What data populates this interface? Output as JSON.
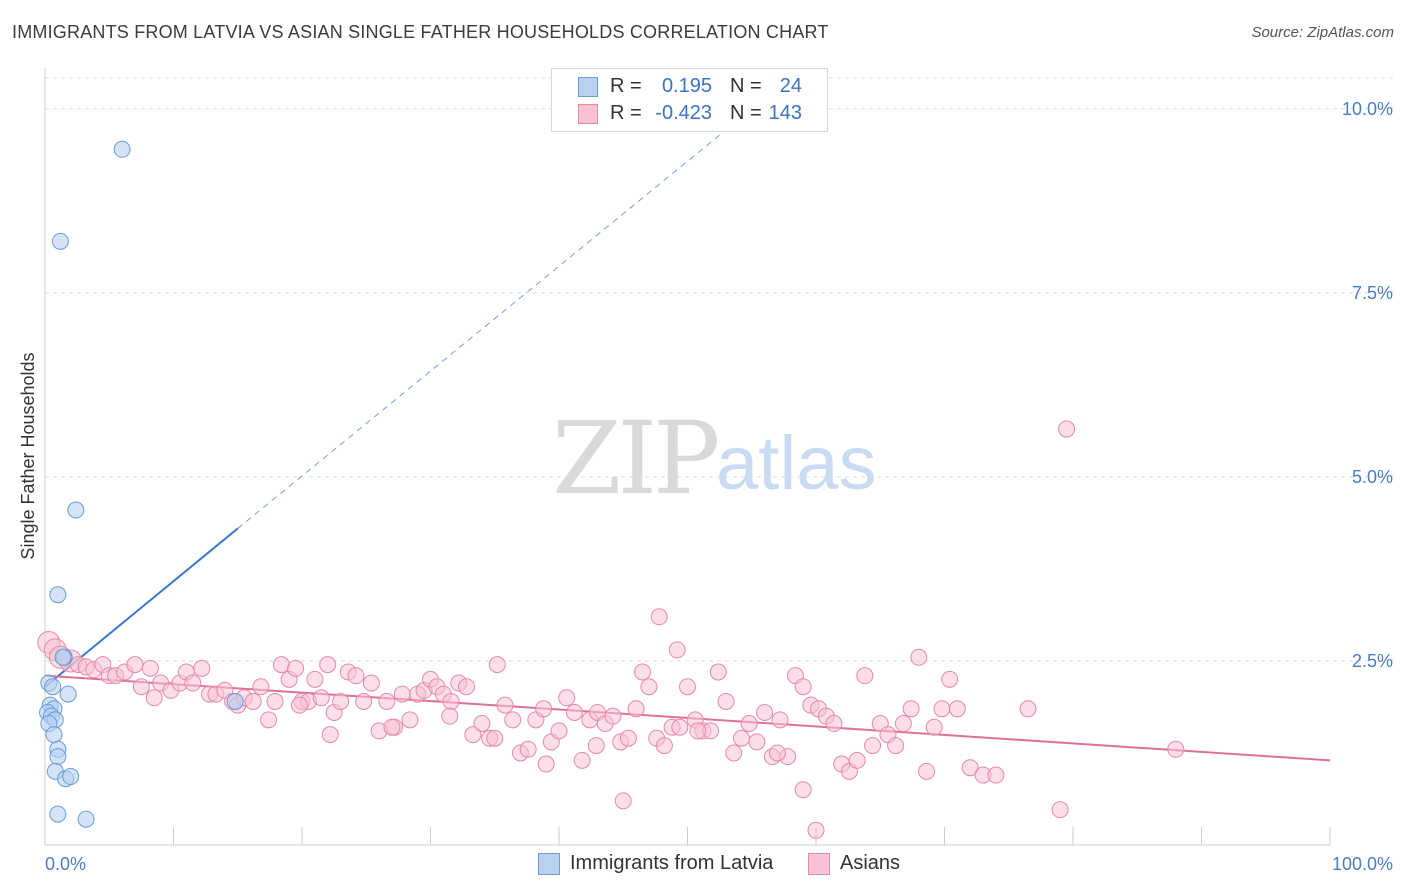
{
  "title": "IMMIGRANTS FROM LATVIA VS ASIAN SINGLE FATHER HOUSEHOLDS CORRELATION CHART",
  "source": "Source: ZipAtlas.com",
  "watermark": {
    "zip": "ZIP",
    "atlas": "atlas"
  },
  "legend": {
    "rows": [
      {
        "r_label": "R =",
        "r_value": "0.195",
        "n_label": "N =",
        "n_value": "24"
      },
      {
        "r_label": "R =",
        "r_value": "-0.423",
        "n_label": "N =",
        "n_value": "143"
      }
    ]
  },
  "colors": {
    "blue_fill": "#b8d1f0",
    "blue_stroke": "#6a9bdb",
    "blue_line": "#3a78cc",
    "pink_fill": "#f7c2d2",
    "pink_stroke": "#e58aa8",
    "pink_line": "#e0709a",
    "tick_text": "#4a7cc9",
    "grid": "#dddddd"
  },
  "chart_data": {
    "type": "scatter",
    "title": "IMMIGRANTS FROM LATVIA VS ASIAN SINGLE FATHER HOUSEHOLDS CORRELATION CHART",
    "xlabel": "",
    "ylabel": "Single Father Households",
    "xlim": [
      0,
      100
    ],
    "ylim": [
      0,
      10.5
    ],
    "x_tick_labels": [
      "0.0%",
      "100.0%"
    ],
    "y_tick_labels": [
      "2.5%",
      "5.0%",
      "7.5%",
      "10.0%"
    ],
    "y_ticks": [
      2.5,
      5.0,
      7.5,
      10.0
    ],
    "grid": "horizontal dashed",
    "legend_position": "top-center",
    "series": [
      {
        "name": "Immigrants from Latvia",
        "color": "blue",
        "points": [
          [
            6.0,
            9.45
          ],
          [
            1.2,
            8.2
          ],
          [
            2.4,
            4.55
          ],
          [
            1.0,
            3.4
          ],
          [
            1.5,
            2.55
          ],
          [
            1.4,
            2.55
          ],
          [
            0.3,
            2.2
          ],
          [
            0.6,
            2.15
          ],
          [
            1.8,
            2.05
          ],
          [
            0.4,
            1.9
          ],
          [
            0.7,
            1.85
          ],
          [
            0.2,
            1.8
          ],
          [
            0.5,
            1.75
          ],
          [
            0.8,
            1.7
          ],
          [
            0.3,
            1.65
          ],
          [
            0.7,
            1.5
          ],
          [
            1.0,
            1.3
          ],
          [
            1.0,
            1.2
          ],
          [
            0.8,
            1.0
          ],
          [
            1.6,
            0.9
          ],
          [
            2.0,
            0.93
          ],
          [
            1.0,
            0.42
          ],
          [
            3.2,
            0.35
          ],
          [
            14.8,
            1.95
          ]
        ],
        "trend": {
          "x": [
            0,
            15
          ],
          "y": [
            2.15,
            4.3
          ],
          "dashed_to": [
            55,
            10.0
          ]
        }
      },
      {
        "name": "Asians",
        "color": "pink",
        "points": [
          [
            0.3,
            2.75
          ],
          [
            0.8,
            2.65
          ],
          [
            1.2,
            2.55
          ],
          [
            2.0,
            2.5
          ],
          [
            2.6,
            2.45
          ],
          [
            3.2,
            2.42
          ],
          [
            3.8,
            2.38
          ],
          [
            4.5,
            2.45
          ],
          [
            5.0,
            2.3
          ],
          [
            5.5,
            2.3
          ],
          [
            6.2,
            2.35
          ],
          [
            7.0,
            2.45
          ],
          [
            7.5,
            2.15
          ],
          [
            8.2,
            2.4
          ],
          [
            8.5,
            2.0
          ],
          [
            9.0,
            2.2
          ],
          [
            9.8,
            2.1
          ],
          [
            10.5,
            2.2
          ],
          [
            11.0,
            2.35
          ],
          [
            11.5,
            2.2
          ],
          [
            12.2,
            2.4
          ],
          [
            12.8,
            2.05
          ],
          [
            13.3,
            2.05
          ],
          [
            14.0,
            2.1
          ],
          [
            14.6,
            1.95
          ],
          [
            15.0,
            1.9
          ],
          [
            15.5,
            2.0
          ],
          [
            16.2,
            1.95
          ],
          [
            16.8,
            2.15
          ],
          [
            17.4,
            1.7
          ],
          [
            17.9,
            1.95
          ],
          [
            18.4,
            2.45
          ],
          [
            19.0,
            2.25
          ],
          [
            19.5,
            2.4
          ],
          [
            20.0,
            1.95
          ],
          [
            20.5,
            1.95
          ],
          [
            21.0,
            2.25
          ],
          [
            21.5,
            2.0
          ],
          [
            22.0,
            2.45
          ],
          [
            22.5,
            1.8
          ],
          [
            23.0,
            1.95
          ],
          [
            23.6,
            2.35
          ],
          [
            24.2,
            2.3
          ],
          [
            24.8,
            1.95
          ],
          [
            25.4,
            2.2
          ],
          [
            26.0,
            1.55
          ],
          [
            26.6,
            1.95
          ],
          [
            27.2,
            1.6
          ],
          [
            27.8,
            2.05
          ],
          [
            28.4,
            1.7
          ],
          [
            29.0,
            2.05
          ],
          [
            29.5,
            2.1
          ],
          [
            30.0,
            2.25
          ],
          [
            30.5,
            2.15
          ],
          [
            31.0,
            2.05
          ],
          [
            31.6,
            1.95
          ],
          [
            32.2,
            2.2
          ],
          [
            32.8,
            2.15
          ],
          [
            33.3,
            1.5
          ],
          [
            34.0,
            1.65
          ],
          [
            34.6,
            1.45
          ],
          [
            35.2,
            2.45
          ],
          [
            35.8,
            1.9
          ],
          [
            36.4,
            1.7
          ],
          [
            37.0,
            1.25
          ],
          [
            37.6,
            1.3
          ],
          [
            38.2,
            1.7
          ],
          [
            38.8,
            1.85
          ],
          [
            39.4,
            1.4
          ],
          [
            40.0,
            1.55
          ],
          [
            40.6,
            2.0
          ],
          [
            41.2,
            1.8
          ],
          [
            41.8,
            1.15
          ],
          [
            42.4,
            1.7
          ],
          [
            43.0,
            1.8
          ],
          [
            43.6,
            1.65
          ],
          [
            44.2,
            1.75
          ],
          [
            44.8,
            1.4
          ],
          [
            45.4,
            1.45
          ],
          [
            46.0,
            1.85
          ],
          [
            46.5,
            2.35
          ],
          [
            47.0,
            2.15
          ],
          [
            47.6,
            1.45
          ],
          [
            48.2,
            1.35
          ],
          [
            48.8,
            1.6
          ],
          [
            49.4,
            1.6
          ],
          [
            50.0,
            2.15
          ],
          [
            50.6,
            1.7
          ],
          [
            51.2,
            1.55
          ],
          [
            51.8,
            1.55
          ],
          [
            52.4,
            2.35
          ],
          [
            53.0,
            1.95
          ],
          [
            53.6,
            1.25
          ],
          [
            54.2,
            1.45
          ],
          [
            54.8,
            1.65
          ],
          [
            55.4,
            1.4
          ],
          [
            56.0,
            1.8
          ],
          [
            56.6,
            1.2
          ],
          [
            57.2,
            1.7
          ],
          [
            57.8,
            1.2
          ],
          [
            58.4,
            2.3
          ],
          [
            59.0,
            2.15
          ],
          [
            59.6,
            1.9
          ],
          [
            60.2,
            1.85
          ],
          [
            60.8,
            1.75
          ],
          [
            61.4,
            1.65
          ],
          [
            62.0,
            1.1
          ],
          [
            62.6,
            1.0
          ],
          [
            63.2,
            1.15
          ],
          [
            63.8,
            2.3
          ],
          [
            64.4,
            1.35
          ],
          [
            65.0,
            1.65
          ],
          [
            65.6,
            1.5
          ],
          [
            66.2,
            1.35
          ],
          [
            66.8,
            1.65
          ],
          [
            67.4,
            1.85
          ],
          [
            68.0,
            2.55
          ],
          [
            68.6,
            1.0
          ],
          [
            69.2,
            1.6
          ],
          [
            69.8,
            1.85
          ],
          [
            70.4,
            2.25
          ],
          [
            71.0,
            1.85
          ],
          [
            72.0,
            1.05
          ],
          [
            73.0,
            0.95
          ],
          [
            74.0,
            0.95
          ],
          [
            76.5,
            1.85
          ],
          [
            79.5,
            5.65
          ],
          [
            79.0,
            0.48
          ],
          [
            59.0,
            0.75
          ],
          [
            45.0,
            0.6
          ],
          [
            50.8,
            1.55
          ],
          [
            47.8,
            3.1
          ],
          [
            49.2,
            2.65
          ],
          [
            57.0,
            1.25
          ],
          [
            27.0,
            1.6
          ],
          [
            88.0,
            1.3
          ],
          [
            39.0,
            1.1
          ],
          [
            31.5,
            1.75
          ],
          [
            35.0,
            1.45
          ],
          [
            42.9,
            1.35
          ],
          [
            60.0,
            0.2
          ],
          [
            19.8,
            1.9
          ],
          [
            22.2,
            1.5
          ]
        ],
        "trend": {
          "x": [
            0,
            100
          ],
          "y": [
            2.3,
            1.15
          ]
        }
      }
    ],
    "bottom_legend": [
      "Immigrants from Latvia",
      "Asians"
    ]
  }
}
